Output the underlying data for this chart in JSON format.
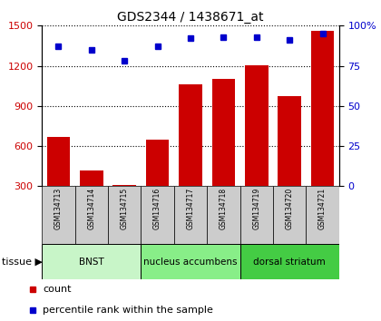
{
  "title": "GDS2344 / 1438671_at",
  "samples": [
    "GSM134713",
    "GSM134714",
    "GSM134715",
    "GSM134716",
    "GSM134717",
    "GSM134718",
    "GSM134719",
    "GSM134720",
    "GSM134721"
  ],
  "counts": [
    670,
    420,
    310,
    645,
    1060,
    1100,
    1205,
    970,
    1460
  ],
  "percentiles": [
    87,
    85,
    78,
    87,
    92,
    93,
    93,
    91,
    95
  ],
  "ylim_left": [
    300,
    1500
  ],
  "ylim_right": [
    0,
    100
  ],
  "yticks_left": [
    300,
    600,
    900,
    1200,
    1500
  ],
  "yticks_right": [
    0,
    25,
    50,
    75,
    100
  ],
  "bar_color": "#cc0000",
  "dot_color": "#0000cc",
  "groups": [
    {
      "label": "BNST",
      "start": 0,
      "end": 3,
      "color": "#c8f5c8"
    },
    {
      "label": "nucleus accumbens",
      "start": 3,
      "end": 6,
      "color": "#88ee88"
    },
    {
      "label": "dorsal striatum",
      "start": 6,
      "end": 9,
      "color": "#44cc44"
    }
  ],
  "tissue_label": "tissue",
  "legend_count_label": "count",
  "legend_pct_label": "percentile rank within the sample",
  "tick_label_color_left": "#cc0000",
  "tick_label_color_right": "#0000cc",
  "xtick_bg_color": "#cccccc",
  "bar_width": 0.7
}
